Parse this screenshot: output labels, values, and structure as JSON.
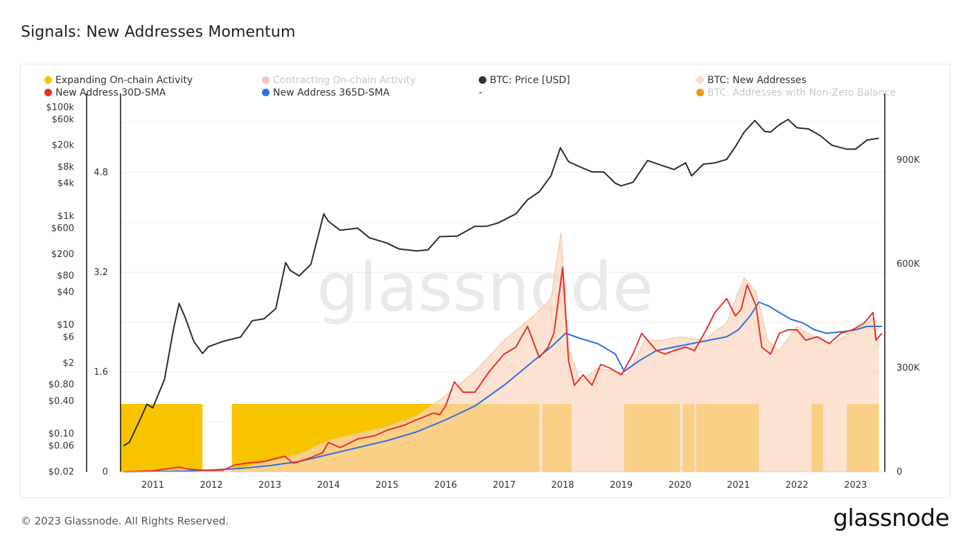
{
  "page": {
    "title": "Signals: New Addresses Momentum",
    "footer": "© 2023 Glassnode. All Rights Reserved.",
    "brand": "glassnode",
    "watermark": "glassnode"
  },
  "legend": [
    {
      "label": "Expanding On-chain Activity",
      "color": "#f8c400",
      "faded": false
    },
    {
      "label": "Contracting On-chain Activity",
      "color": "#f6c4c4",
      "faded": true
    },
    {
      "label": "BTC: Price [USD]",
      "color": "#333333",
      "faded": false
    },
    {
      "label": "BTC: New Addresses",
      "color": "#fadcc8",
      "faded": false
    },
    {
      "label": "New Address 30D-SMA",
      "color": "#e8302a",
      "faded": false
    },
    {
      "label": "New Address 365D-SMA",
      "color": "#2f6fe4",
      "faded": false
    },
    {
      "label": "-",
      "color": "",
      "faded": false
    },
    {
      "label": "BTC: Addresses with Non-Zero Balance",
      "color": "#f5941d",
      "faded": true
    }
  ],
  "chart_data": {
    "type": "line",
    "x_range": [
      2010.45,
      2023.5
    ],
    "x_ticks": [
      {
        "value": 2011,
        "label": "2011"
      },
      {
        "value": 2012,
        "label": "2012"
      },
      {
        "value": 2013,
        "label": "2013"
      },
      {
        "value": 2014,
        "label": "2014"
      },
      {
        "value": 2015,
        "label": "2015"
      },
      {
        "value": 2016,
        "label": "2016"
      },
      {
        "value": 2017,
        "label": "2017"
      },
      {
        "value": 2018,
        "label": "2018"
      },
      {
        "value": 2019,
        "label": "2019"
      },
      {
        "value": 2020,
        "label": "2020"
      },
      {
        "value": 2021,
        "label": "2021"
      },
      {
        "value": 2022,
        "label": "2022"
      },
      {
        "value": 2023,
        "label": "2023"
      }
    ],
    "y_price": {
      "scale": "log",
      "range": [
        0.02,
        150000
      ],
      "ticks": [
        {
          "value": 100000,
          "label": "$100k"
        },
        {
          "value": 60000,
          "label": "$60k"
        },
        {
          "value": 20000,
          "label": "$20k"
        },
        {
          "value": 8000,
          "label": "$8k"
        },
        {
          "value": 4000,
          "label": "$4k"
        },
        {
          "value": 1000,
          "label": "$1k"
        },
        {
          "value": 600,
          "label": "$600"
        },
        {
          "value": 200,
          "label": "$200"
        },
        {
          "value": 80,
          "label": "$80"
        },
        {
          "value": 40,
          "label": "$40"
        },
        {
          "value": 10,
          "label": "$10"
        },
        {
          "value": 6,
          "label": "$6"
        },
        {
          "value": 2,
          "label": "$2"
        },
        {
          "value": 0.8,
          "label": "$0.80"
        },
        {
          "value": 0.4,
          "label": "$0.40"
        },
        {
          "value": 0.1,
          "label": "$0.10"
        },
        {
          "value": 0.06,
          "label": "$0.06"
        },
        {
          "value": 0.02,
          "label": "$0.02"
        }
      ]
    },
    "y_signal": {
      "range": [
        0,
        6
      ],
      "ticks": [
        {
          "value": 4.8,
          "label": "4.8"
        },
        {
          "value": 3.2,
          "label": "3.2"
        },
        {
          "value": 1.6,
          "label": "1.6"
        },
        {
          "value": 0,
          "label": "0"
        }
      ]
    },
    "y_addresses": {
      "range": [
        0,
        1080000
      ],
      "ticks": [
        {
          "value": 900000,
          "label": "900K"
        },
        {
          "value": 600000,
          "label": "600K"
        },
        {
          "value": 300000,
          "label": "300K"
        },
        {
          "value": 0,
          "label": "0"
        }
      ]
    },
    "expanding_regions": [
      [
        2010.45,
        2011.85
      ],
      [
        2012.35,
        2017.6
      ],
      [
        2017.65,
        2018.15
      ],
      [
        2019.05,
        2020.0
      ],
      [
        2020.05,
        2020.25
      ],
      [
        2020.28,
        2021.35
      ],
      [
        2022.25,
        2022.45
      ],
      [
        2022.85,
        2023.4
      ]
    ],
    "series": [
      {
        "name": "BTC: Price [USD]",
        "color": "#2b2b2b",
        "axis": "price",
        "x": [
          2010.5,
          2010.6,
          2010.8,
          2010.9,
          2011.0,
          2011.2,
          2011.35,
          2011.45,
          2011.55,
          2011.7,
          2011.85,
          2011.95,
          2012.2,
          2012.5,
          2012.7,
          2012.9,
          2013.1,
          2013.27,
          2013.35,
          2013.5,
          2013.7,
          2013.92,
          2014.0,
          2014.2,
          2014.5,
          2014.7,
          2015.0,
          2015.2,
          2015.5,
          2015.7,
          2015.9,
          2016.2,
          2016.5,
          2016.7,
          2016.9,
          2017.2,
          2017.4,
          2017.6,
          2017.8,
          2017.96,
          2018.1,
          2018.3,
          2018.5,
          2018.7,
          2018.9,
          2019.0,
          2019.2,
          2019.45,
          2019.7,
          2019.9,
          2020.1,
          2020.2,
          2020.4,
          2020.6,
          2020.8,
          2020.95,
          2021.1,
          2021.28,
          2021.45,
          2021.55,
          2021.7,
          2021.85,
          2022.0,
          2022.2,
          2022.4,
          2022.6,
          2022.85,
          2023.0,
          2023.2,
          2023.4
        ],
        "y": [
          0.06,
          0.07,
          0.2,
          0.35,
          0.3,
          1,
          8,
          25,
          14,
          5,
          3,
          4,
          5,
          6,
          12,
          13,
          20,
          140,
          100,
          80,
          130,
          1100,
          800,
          550,
          600,
          400,
          320,
          250,
          230,
          240,
          420,
          430,
          650,
          650,
          750,
          1100,
          2000,
          2800,
          5500,
          18000,
          10000,
          8000,
          6500,
          6500,
          4000,
          3600,
          4200,
          10500,
          8500,
          7200,
          9500,
          5500,
          9000,
          9500,
          11000,
          19000,
          35000,
          57000,
          36000,
          35000,
          48000,
          60000,
          42000,
          40000,
          30000,
          20000,
          17000,
          17000,
          25000,
          27000
        ]
      },
      {
        "name": "BTC: New Addresses",
        "color": "#fad6bd",
        "axis": "addresses",
        "x": [
          2010.5,
          2012.5,
          2013.0,
          2013.5,
          2014.0,
          2014.5,
          2015.0,
          2015.5,
          2016.0,
          2016.5,
          2017.0,
          2017.5,
          2017.8,
          2017.97,
          2018.1,
          2018.3,
          2018.6,
          2018.9,
          2019.1,
          2019.4,
          2019.7,
          2020.0,
          2020.4,
          2020.8,
          2021.0,
          2021.1,
          2021.3,
          2021.5,
          2021.7,
          2022.0,
          2022.3,
          2022.6,
          2022.9,
          2023.1,
          2023.3,
          2023.4
        ],
        "y": [
          0,
          10000,
          30000,
          50000,
          90000,
          110000,
          130000,
          160000,
          220000,
          290000,
          380000,
          450000,
          500000,
          690000,
          360000,
          260000,
          300000,
          290000,
          280000,
          380000,
          380000,
          390000,
          380000,
          430000,
          520000,
          560000,
          520000,
          380000,
          350000,
          420000,
          390000,
          370000,
          400000,
          420000,
          440000,
          360000
        ]
      },
      {
        "name": "New Address 30D-SMA",
        "color": "#e8302a",
        "axis": "addresses",
        "x": [
          2010.5,
          2011.0,
          2011.45,
          2011.6,
          2011.9,
          2012.2,
          2012.4,
          2012.6,
          2012.9,
          2013.25,
          2013.4,
          2013.6,
          2013.9,
          2014.0,
          2014.2,
          2014.5,
          2014.8,
          2015.0,
          2015.3,
          2015.5,
          2015.8,
          2015.9,
          2016.0,
          2016.15,
          2016.3,
          2016.5,
          2016.75,
          2017.0,
          2017.2,
          2017.4,
          2017.6,
          2017.75,
          2017.85,
          2018.0,
          2018.1,
          2018.2,
          2018.35,
          2018.5,
          2018.65,
          2018.8,
          2019.0,
          2019.2,
          2019.35,
          2019.5,
          2019.6,
          2019.75,
          2019.9,
          2020.1,
          2020.25,
          2020.45,
          2020.6,
          2020.8,
          2020.95,
          2021.05,
          2021.15,
          2021.3,
          2021.4,
          2021.55,
          2021.7,
          2021.85,
          2022.0,
          2022.15,
          2022.35,
          2022.55,
          2022.75,
          2022.95,
          2023.15,
          2023.3,
          2023.35,
          2023.45
        ],
        "y": [
          0,
          3000,
          14000,
          8000,
          4000,
          5000,
          20000,
          25000,
          30000,
          45000,
          25000,
          35000,
          55000,
          85000,
          70000,
          95000,
          105000,
          120000,
          135000,
          150000,
          170000,
          165000,
          190000,
          260000,
          230000,
          230000,
          290000,
          340000,
          360000,
          420000,
          330000,
          360000,
          400000,
          590000,
          320000,
          250000,
          280000,
          250000,
          310000,
          300000,
          280000,
          340000,
          400000,
          370000,
          350000,
          340000,
          350000,
          360000,
          350000,
          410000,
          460000,
          500000,
          450000,
          470000,
          540000,
          480000,
          360000,
          340000,
          400000,
          410000,
          410000,
          380000,
          390000,
          370000,
          400000,
          410000,
          430000,
          460000,
          380000,
          400000
        ]
      },
      {
        "name": "New Address 365D-SMA",
        "color": "#2f6fe4",
        "axis": "addresses",
        "x": [
          2010.5,
          2011.5,
          2012.0,
          2012.5,
          2013.0,
          2013.5,
          2014.0,
          2014.5,
          2015.0,
          2015.5,
          2016.0,
          2016.5,
          2017.0,
          2017.5,
          2017.8,
          2018.05,
          2018.3,
          2018.6,
          2018.9,
          2019.05,
          2019.3,
          2019.6,
          2019.9,
          2020.2,
          2020.5,
          2020.8,
          2021.0,
          2021.2,
          2021.35,
          2021.5,
          2021.7,
          2021.9,
          2022.1,
          2022.3,
          2022.5,
          2022.8,
          2023.0,
          2023.2,
          2023.45
        ],
        "y": [
          0,
          2000,
          5000,
          10000,
          18000,
          30000,
          50000,
          70000,
          90000,
          115000,
          150000,
          190000,
          250000,
          320000,
          360000,
          400000,
          385000,
          370000,
          340000,
          290000,
          320000,
          350000,
          360000,
          370000,
          380000,
          390000,
          410000,
          450000,
          490000,
          480000,
          460000,
          440000,
          430000,
          410000,
          400000,
          405000,
          410000,
          420000,
          420000
        ]
      }
    ]
  }
}
